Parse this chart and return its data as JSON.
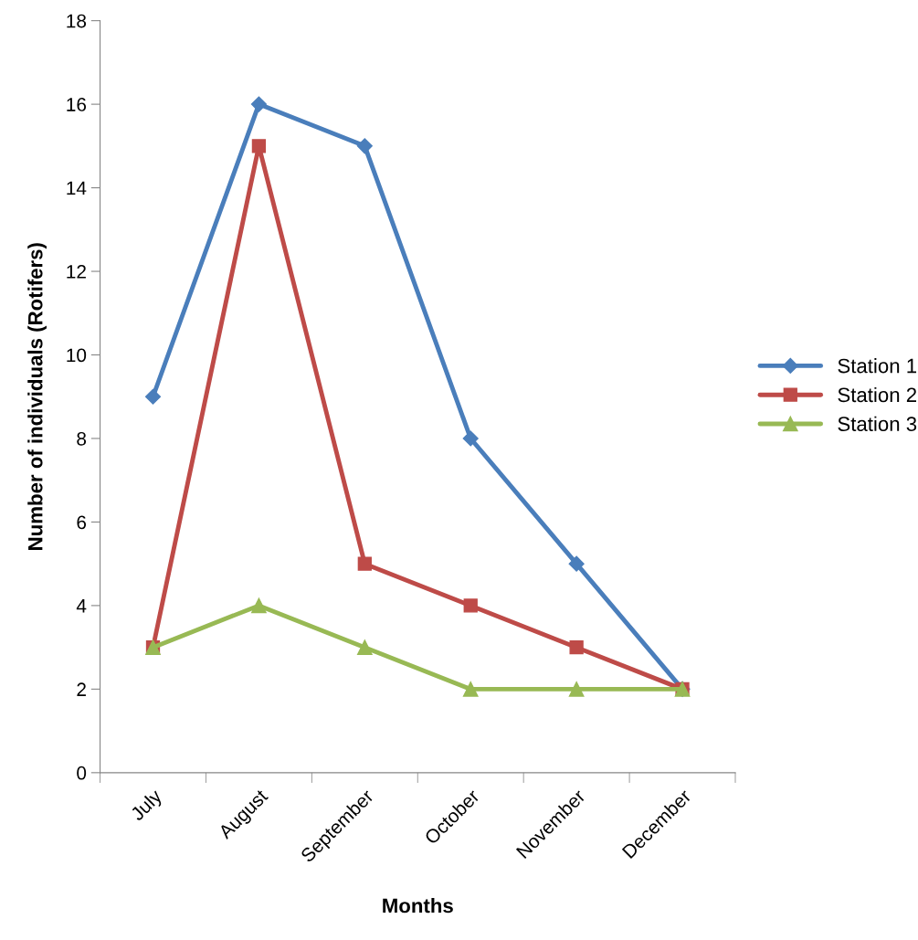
{
  "chart_data": {
    "type": "line",
    "xlabel": "Months",
    "ylabel": "Number of individuals (Rotifers)",
    "categories": [
      "July",
      "August",
      "September",
      "October",
      "November",
      "December"
    ],
    "series": [
      {
        "name": "Station 1",
        "color": "#4a7ebb",
        "marker": "diamond",
        "values": [
          9,
          16,
          15,
          8,
          5,
          2
        ]
      },
      {
        "name": "Station 2",
        "color": "#be4b48",
        "marker": "square",
        "values": [
          3,
          15,
          5,
          4,
          3,
          2
        ]
      },
      {
        "name": "Station 3",
        "color": "#98b954",
        "marker": "triangle",
        "values": [
          3,
          4,
          3,
          2,
          2,
          2
        ]
      }
    ],
    "ylim": [
      0,
      18
    ],
    "yticks": [
      0,
      2,
      4,
      6,
      8,
      10,
      12,
      14,
      16,
      18
    ],
    "grid": false,
    "legend": "right",
    "line_style": "solid"
  }
}
